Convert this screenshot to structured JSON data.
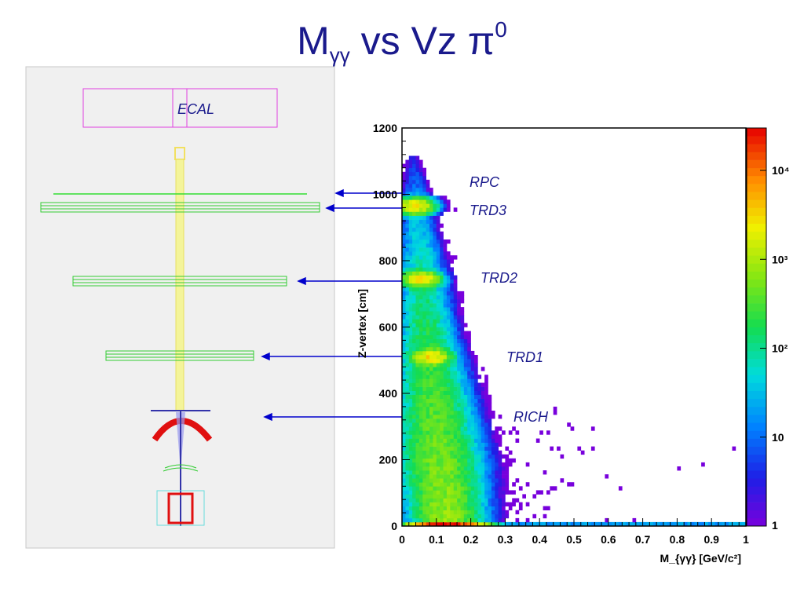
{
  "title": {
    "main": "M",
    "sub": "γγ",
    "middle": " vs Vz π",
    "sup": "0"
  },
  "detector": {
    "ecal_label": "ECAL",
    "colors": {
      "ecal": "#e040e0",
      "beampipe": "#f2f27a",
      "stations": "#33dd33",
      "rich_mirror": "#e01010",
      "arrows": "#0000cc",
      "panel_bg": "#f0f0f0"
    }
  },
  "annotations": [
    "RPC",
    "TRD3",
    "TRD2",
    "TRD1",
    "RICH"
  ],
  "chart_data": {
    "type": "heatmap",
    "title": "",
    "xlabel": "M_{γγ} [GeV/c²]",
    "ylabel": "Z-vertex [cm]",
    "xlim": [
      0,
      1
    ],
    "ylim": [
      0,
      1200
    ],
    "x_ticks": [
      "0",
      "0.1",
      "0.2",
      "0.3",
      "0.4",
      "0.5",
      "0.6",
      "0.7",
      "0.8",
      "0.9",
      "1"
    ],
    "y_ticks": [
      "0",
      "200",
      "400",
      "600",
      "800",
      "1000",
      "1200"
    ],
    "color_scale": "log",
    "z_range": [
      1,
      30000
    ],
    "colorbar_labels": [
      {
        "value": 1,
        "label": "1"
      },
      {
        "value": 10,
        "label": "10"
      },
      {
        "value": 100,
        "label": "10²"
      },
      {
        "value": 1000,
        "label": "10³"
      },
      {
        "value": 10000,
        "label": "10⁴"
      }
    ],
    "features": {
      "main_band": [
        {
          "z": 20,
          "m": 0.13,
          "width": 0.07
        },
        {
          "z": 200,
          "m": 0.11,
          "width": 0.08
        },
        {
          "z": 400,
          "m": 0.09,
          "width": 0.07
        },
        {
          "z": 600,
          "m": 0.07,
          "width": 0.055
        },
        {
          "z": 800,
          "m": 0.055,
          "width": 0.045
        },
        {
          "z": 1000,
          "m": 0.04,
          "width": 0.03
        },
        {
          "z": 1120,
          "m": 0.03,
          "width": 0.02
        }
      ],
      "hotspots": [
        {
          "label": "TRD3",
          "z": 965,
          "m": 0.038,
          "intensity": 3000
        },
        {
          "label": "TRD2",
          "z": 745,
          "m": 0.055,
          "intensity": 3000
        },
        {
          "label": "TRD1",
          "z": 510,
          "m": 0.085,
          "intensity": 3000
        }
      ],
      "target_row": {
        "z": 5,
        "peak_m": 0.13,
        "peak_intensity": 30000
      }
    }
  }
}
